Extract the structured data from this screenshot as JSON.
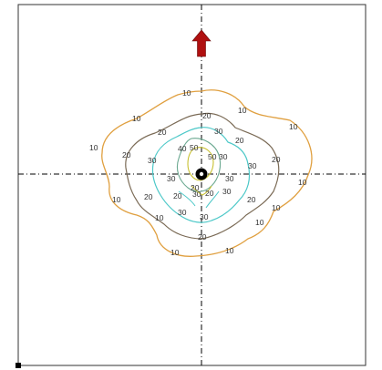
{
  "colors": {
    "frame": "#333333",
    "axis": "#000000",
    "arrow": "#b01010",
    "source": "#000000",
    "level_10": "#e0a040",
    "level_20": "#7a6a55",
    "level_30": "#4cc8c8",
    "level_40": "#6aa890",
    "level_50": "#c8c030"
  },
  "icons": {
    "direction": "up-arrow-icon",
    "source": "source-point-icon",
    "corner": "corner-marker-icon"
  },
  "contours": [
    {
      "level": "10",
      "labels": [
        "10",
        "10",
        "10",
        "10",
        "10",
        "10",
        "10",
        "10",
        "10",
        "10",
        "10",
        "10"
      ]
    },
    {
      "level": "20",
      "labels": [
        "20",
        "20",
        "20",
        "20",
        "20",
        "20",
        "20",
        "20",
        "20",
        "20",
        "20"
      ]
    },
    {
      "level": "30",
      "labels": [
        "30",
        "30",
        "30",
        "30",
        "30",
        "30",
        "30",
        "30",
        "30",
        "30"
      ]
    },
    {
      "level": "40",
      "labels": [
        "40"
      ]
    },
    {
      "level": "50",
      "labels": [
        "50",
        "50"
      ]
    }
  ]
}
